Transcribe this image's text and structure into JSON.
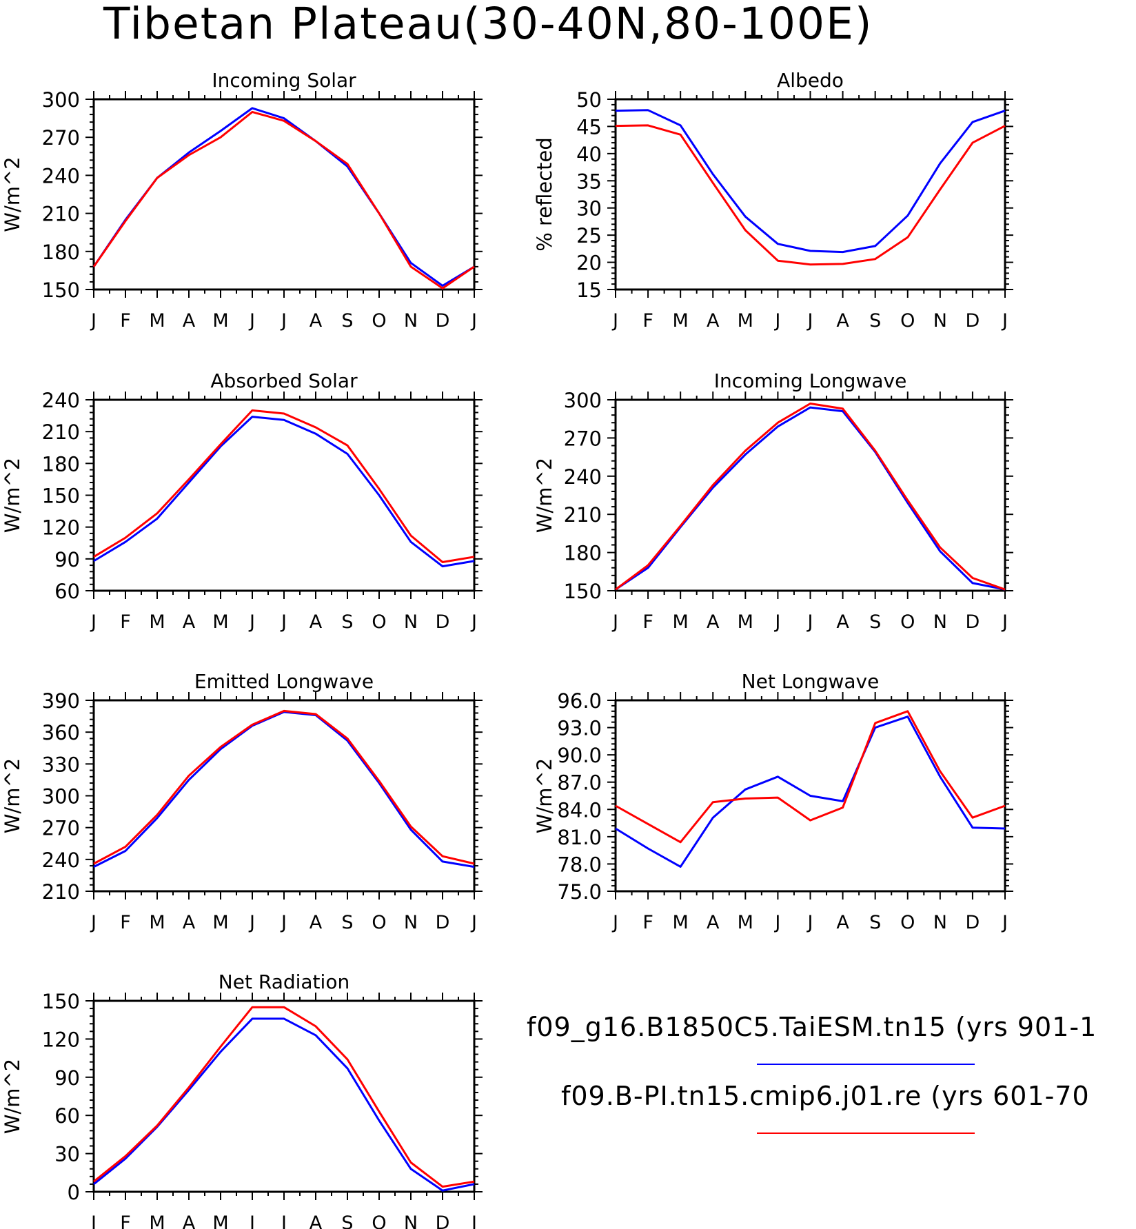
{
  "title": "Tibetan Plateau(30-40N,80-100E)",
  "months": [
    "J",
    "F",
    "M",
    "A",
    "M",
    "J",
    "J",
    "A",
    "S",
    "O",
    "N",
    "D",
    "J"
  ],
  "colors": {
    "series1": "#0000ff",
    "series2": "#ff0000",
    "axis": "#000000"
  },
  "legend": [
    {
      "label": "f09_g16.B1850C5.TaiESM.tn15 (yrs 901-1",
      "color": "#0000ff"
    },
    {
      "label": "f09.B-PI.tn15.cmip6.j01.re (yrs 601-70",
      "color": "#ff0000"
    }
  ],
  "chart_data": [
    {
      "type": "line",
      "title": "Incoming Solar",
      "ylabel": "W/m^2",
      "ylim": [
        150,
        300
      ],
      "yticks": [
        "150",
        "180",
        "210",
        "240",
        "270",
        "300"
      ],
      "x": [
        "J",
        "F",
        "M",
        "A",
        "M",
        "J",
        "J",
        "A",
        "S",
        "O",
        "N",
        "D",
        "J"
      ],
      "series": [
        {
          "color": "#0000ff",
          "values": [
            168,
            205,
            238,
            258,
            275,
            293,
            285,
            267,
            247,
            210,
            171,
            153,
            168
          ]
        },
        {
          "color": "#ff0000",
          "values": [
            168,
            204,
            238,
            256,
            270,
            290,
            283,
            267,
            249,
            210,
            168,
            151,
            168
          ]
        }
      ]
    },
    {
      "type": "line",
      "title": "Albedo",
      "ylabel": "% reflected",
      "ylim": [
        15,
        50
      ],
      "yticks": [
        "15",
        "20",
        "25",
        "30",
        "35",
        "40",
        "45",
        "50"
      ],
      "x": [
        "J",
        "F",
        "M",
        "A",
        "M",
        "J",
        "J",
        "A",
        "S",
        "O",
        "N",
        "D",
        "J"
      ],
      "series": [
        {
          "color": "#0000ff",
          "values": [
            47.9,
            48.0,
            45.2,
            36.2,
            28.4,
            23.4,
            22.1,
            21.9,
            23.0,
            28.6,
            38.2,
            45.8,
            47.9
          ]
        },
        {
          "color": "#ff0000",
          "values": [
            45.1,
            45.2,
            43.5,
            34.6,
            25.9,
            20.3,
            19.6,
            19.7,
            20.6,
            24.6,
            33.4,
            42.0,
            45.1
          ]
        }
      ]
    },
    {
      "type": "line",
      "title": "Absorbed Solar",
      "ylabel": "W/m^2",
      "ylim": [
        60,
        240
      ],
      "yticks": [
        "60",
        "90",
        "120",
        "150",
        "180",
        "210",
        "240"
      ],
      "x": [
        "J",
        "F",
        "M",
        "A",
        "M",
        "J",
        "J",
        "A",
        "S",
        "O",
        "N",
        "D",
        "J"
      ],
      "series": [
        {
          "color": "#0000ff",
          "values": [
            88,
            106,
            128,
            162,
            196,
            224,
            221,
            208,
            189,
            150,
            106,
            83,
            88
          ]
        },
        {
          "color": "#ff0000",
          "values": [
            92,
            110,
            133,
            165,
            198,
            230,
            227,
            214,
            197,
            156,
            112,
            87,
            92
          ]
        }
      ]
    },
    {
      "type": "line",
      "title": "Incoming Longwave",
      "ylabel": "W/m^2",
      "ylim": [
        150,
        300
      ],
      "yticks": [
        "150",
        "180",
        "210",
        "240",
        "270",
        "300"
      ],
      "x": [
        "J",
        "F",
        "M",
        "A",
        "M",
        "J",
        "J",
        "A",
        "S",
        "O",
        "N",
        "D",
        "J"
      ],
      "series": [
        {
          "color": "#0000ff",
          "values": [
            151,
            168,
            200,
            231,
            257,
            279,
            294,
            291,
            259,
            219,
            181,
            156,
            151
          ]
        },
        {
          "color": "#ff0000",
          "values": [
            151,
            170,
            201,
            233,
            260,
            282,
            297,
            293,
            260,
            221,
            184,
            160,
            151
          ]
        }
      ]
    },
    {
      "type": "line",
      "title": "Emitted Longwave",
      "ylabel": "W/m^2",
      "ylim": [
        210,
        390
      ],
      "yticks": [
        "210",
        "240",
        "270",
        "300",
        "330",
        "360",
        "390"
      ],
      "x": [
        "J",
        "F",
        "M",
        "A",
        "M",
        "J",
        "J",
        "A",
        "S",
        "O",
        "N",
        "D",
        "J"
      ],
      "series": [
        {
          "color": "#0000ff",
          "values": [
            233,
            248,
            279,
            315,
            344,
            366,
            379,
            376,
            352,
            312,
            268,
            238,
            233
          ]
        },
        {
          "color": "#ff0000",
          "values": [
            236,
            252,
            282,
            319,
            346,
            367,
            380,
            377,
            354,
            314,
            271,
            243,
            236
          ]
        }
      ]
    },
    {
      "type": "line",
      "title": "Net Longwave",
      "ylabel": "W/m^2",
      "ylim": [
        75.0,
        96.0
      ],
      "yticks": [
        "75.0",
        "78.0",
        "81.0",
        "84.0",
        "87.0",
        "90.0",
        "93.0",
        "96.0"
      ],
      "x": [
        "J",
        "F",
        "M",
        "A",
        "M",
        "J",
        "J",
        "A",
        "S",
        "O",
        "N",
        "D",
        "J"
      ],
      "series": [
        {
          "color": "#0000ff",
          "values": [
            81.9,
            79.7,
            77.7,
            83.1,
            86.2,
            87.6,
            85.5,
            84.9,
            93.0,
            94.2,
            87.6,
            82.0,
            81.9
          ]
        },
        {
          "color": "#ff0000",
          "values": [
            84.4,
            82.4,
            80.4,
            84.8,
            85.2,
            85.3,
            82.8,
            84.2,
            93.5,
            94.8,
            88.2,
            83.1,
            84.4
          ]
        }
      ]
    },
    {
      "type": "line",
      "title": "Net Radiation",
      "ylabel": "W/m^2",
      "ylim": [
        0,
        150
      ],
      "yticks": [
        "0",
        "30",
        "60",
        "90",
        "120",
        "150"
      ],
      "x": [
        "J",
        "F",
        "M",
        "A",
        "M",
        "J",
        "J",
        "A",
        "S",
        "O",
        "N",
        "D",
        "J"
      ],
      "series": [
        {
          "color": "#0000ff",
          "values": [
            6,
            26,
            51,
            80,
            110,
            136,
            136,
            123,
            97,
            56,
            18,
            1,
            6
          ]
        },
        {
          "color": "#ff0000",
          "values": [
            8,
            28,
            52,
            82,
            114,
            145,
            145,
            130,
            104,
            63,
            23,
            4,
            8
          ]
        }
      ]
    }
  ]
}
